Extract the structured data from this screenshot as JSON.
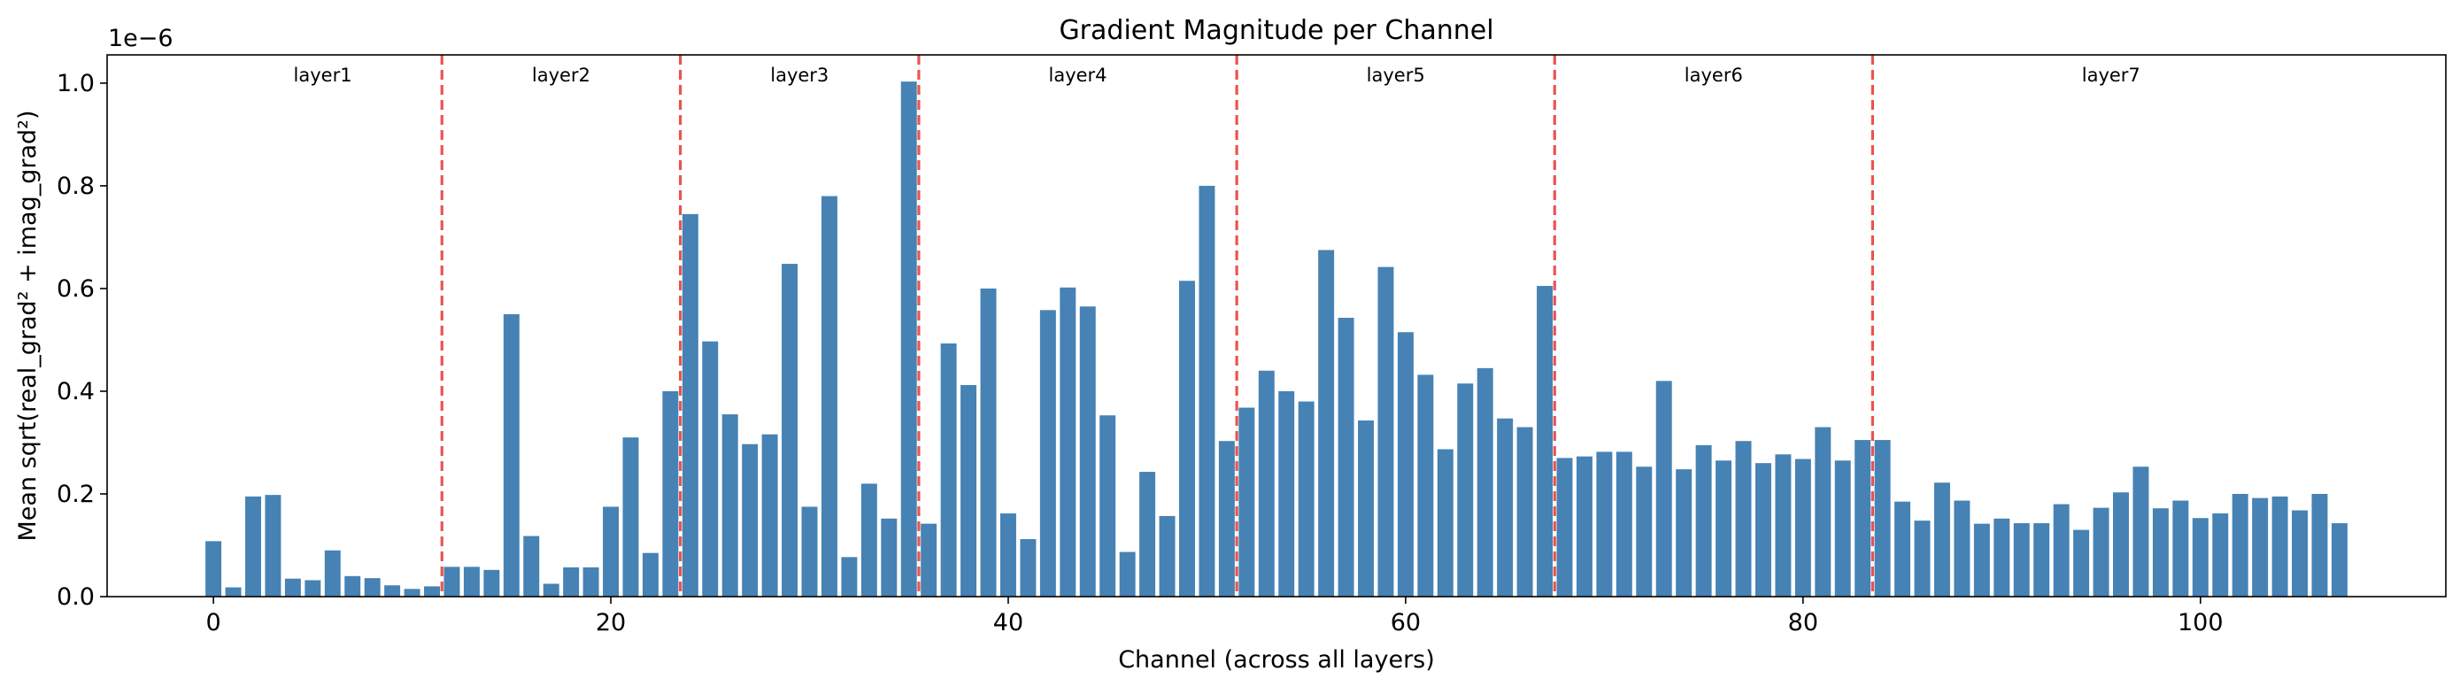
{
  "chart_data": {
    "type": "bar",
    "title": "Gradient Magnitude per Channel",
    "xlabel": "Channel (across all layers)",
    "ylabel": "Mean sqrt(real_grad² + imag_grad²)",
    "y_scale_label": "1e−6",
    "xlim": [
      -5.35,
      112.35
    ],
    "ylim": [
      0,
      1.055
    ],
    "x_ticks": [
      0,
      20,
      40,
      60,
      80,
      100
    ],
    "x_tick_labels": [
      "0",
      "20",
      "40",
      "60",
      "80",
      "100"
    ],
    "y_ticks": [
      0,
      0.2,
      0.4,
      0.6,
      0.8,
      1.0
    ],
    "y_tick_labels": [
      "0.0",
      "0.2",
      "0.4",
      "0.6",
      "0.8",
      "1.0"
    ],
    "bar_color": "#4682b4",
    "boundary_color": "#e8413c",
    "layer_boundaries": [
      11.5,
      23.5,
      35.5,
      51.5,
      67.5,
      83.5
    ],
    "layers": [
      {
        "name": "layer1",
        "start": 0,
        "end": 11
      },
      {
        "name": "layer2",
        "start": 12,
        "end": 23
      },
      {
        "name": "layer3",
        "start": 24,
        "end": 35
      },
      {
        "name": "layer4",
        "start": 36,
        "end": 51
      },
      {
        "name": "layer5",
        "start": 52,
        "end": 67
      },
      {
        "name": "layer6",
        "start": 68,
        "end": 83
      },
      {
        "name": "layer7",
        "start": 84,
        "end": 107
      }
    ],
    "values": [
      0.108,
      0.018,
      0.195,
      0.198,
      0.035,
      0.032,
      0.09,
      0.04,
      0.036,
      0.022,
      0.015,
      0.02,
      0.058,
      0.058,
      0.052,
      0.55,
      0.118,
      0.025,
      0.057,
      0.057,
      0.175,
      0.31,
      0.085,
      0.4,
      0.745,
      0.497,
      0.355,
      0.297,
      0.316,
      0.648,
      0.175,
      0.78,
      0.077,
      0.22,
      0.152,
      1.003,
      0.142,
      0.493,
      0.412,
      0.6,
      0.162,
      0.112,
      0.558,
      0.602,
      0.565,
      0.353,
      0.087,
      0.243,
      0.157,
      0.615,
      0.8,
      0.303,
      0.368,
      0.44,
      0.4,
      0.38,
      0.675,
      0.543,
      0.343,
      0.642,
      0.515,
      0.432,
      0.287,
      0.415,
      0.445,
      0.347,
      0.33,
      0.605,
      0.27,
      0.273,
      0.282,
      0.282,
      0.253,
      0.42,
      0.248,
      0.295,
      0.265,
      0.303,
      0.26,
      0.277,
      0.268,
      0.33,
      0.265,
      0.305,
      0.305,
      0.185,
      0.148,
      0.222,
      0.187,
      0.142,
      0.152,
      0.143,
      0.143,
      0.18,
      0.13,
      0.173,
      0.203,
      0.253,
      0.172,
      0.187,
      0.153,
      0.162,
      0.2,
      0.192,
      0.195,
      0.168,
      0.2,
      0.143
    ]
  }
}
